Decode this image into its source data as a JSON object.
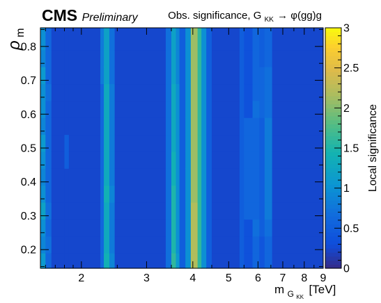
{
  "chart_data": {
    "type": "heatmap",
    "header": {
      "experiment": "CMS",
      "status": "Preliminary",
      "note_prefix": "Obs. significance, G",
      "note_sub": "KK",
      "note_suffix": "→ φ(gg)g"
    },
    "xlabel": {
      "main": "m",
      "sub": "G",
      "subsub": "KK",
      "unit": "[TeV]"
    },
    "ylabel": {
      "main": "ρ",
      "sub": "m"
    },
    "zlabel": "Local significance",
    "x_scale": "log",
    "xlim": [
      1.55,
      9.0
    ],
    "ylim": [
      0.145,
      0.855
    ],
    "zlim": [
      0,
      3
    ],
    "x_ticks": [
      {
        "v": 2,
        "label": "2"
      },
      {
        "v": 3,
        "label": "3"
      },
      {
        "v": 4,
        "label": "4"
      },
      {
        "v": 5,
        "label": "5"
      },
      {
        "v": 6,
        "label": "6"
      },
      {
        "v": 7,
        "label": "7"
      },
      {
        "v": 8,
        "label": "8"
      },
      {
        "v": 9,
        "label": "9"
      }
    ],
    "y_ticks": [
      {
        "v": 0.2,
        "label": "0.2"
      },
      {
        "v": 0.3,
        "label": "0.3"
      },
      {
        "v": 0.4,
        "label": "0.4"
      },
      {
        "v": 0.5,
        "label": "0.5"
      },
      {
        "v": 0.6,
        "label": "0.6"
      },
      {
        "v": 0.7,
        "label": "0.7"
      },
      {
        "v": 0.8,
        "label": "0.8"
      }
    ],
    "z_ticks": [
      {
        "v": 0,
        "label": "0"
      },
      {
        "v": 0.5,
        "label": "0.5"
      },
      {
        "v": 1,
        "label": "1"
      },
      {
        "v": 1.5,
        "label": "1.5"
      },
      {
        "v": 2,
        "label": "2"
      },
      {
        "v": 2.5,
        "label": "2.5"
      },
      {
        "v": 3,
        "label": "3"
      }
    ],
    "y_bins": [
      [
        0.145,
        0.19
      ],
      [
        0.19,
        0.24
      ],
      [
        0.24,
        0.29
      ],
      [
        0.29,
        0.34
      ],
      [
        0.34,
        0.39
      ],
      [
        0.39,
        0.44
      ],
      [
        0.44,
        0.49
      ],
      [
        0.49,
        0.54
      ],
      [
        0.54,
        0.59
      ],
      [
        0.59,
        0.64
      ],
      [
        0.64,
        0.69
      ],
      [
        0.69,
        0.74
      ],
      [
        0.74,
        0.79
      ],
      [
        0.79,
        0.855
      ]
    ],
    "x_bins": [
      [
        1.55,
        1.6
      ],
      [
        1.6,
        1.66
      ],
      [
        1.66,
        1.8
      ],
      [
        1.8,
        1.85
      ],
      [
        1.85,
        2.25
      ],
      [
        2.25,
        2.3
      ],
      [
        2.3,
        2.38
      ],
      [
        2.38,
        2.46
      ],
      [
        2.46,
        3.38
      ],
      [
        3.38,
        3.5
      ],
      [
        3.5,
        3.6
      ],
      [
        3.6,
        3.68
      ],
      [
        3.68,
        3.82
      ],
      [
        3.82,
        3.95
      ],
      [
        3.95,
        4.12
      ],
      [
        4.12,
        4.22
      ],
      [
        4.22,
        4.35
      ],
      [
        4.35,
        4.5
      ],
      [
        4.5,
        5.35
      ],
      [
        5.35,
        5.5
      ],
      [
        5.5,
        5.8
      ],
      [
        5.8,
        6.05
      ],
      [
        6.05,
        6.25
      ],
      [
        6.25,
        6.55
      ],
      [
        6.55,
        9.0
      ]
    ],
    "bin_columns": [
      {
        "bin": [
          1.55,
          1.6
        ],
        "values": [
          1.1,
          0.9,
          1.0,
          1.2,
          1.0,
          0.9,
          1.0,
          1.1,
          0.9,
          1.0,
          1.0,
          1.1,
          0.9,
          1.0
        ]
      },
      {
        "bin": [
          1.6,
          1.66
        ],
        "values": [
          0.6,
          0.7,
          0.6,
          0.7,
          0.6,
          0.6,
          0.6,
          0.6,
          0.6,
          0.6,
          0.7,
          0.6,
          0.6,
          0.6
        ]
      },
      {
        "bin": [
          1.66,
          1.8
        ],
        "values": [
          0.25,
          0.25,
          0.25,
          0.25,
          0.25,
          0.25,
          0.25,
          0.25,
          0.25,
          0.25,
          0.25,
          0.25,
          0.25,
          0.25
        ]
      },
      {
        "bin": [
          1.8,
          1.85
        ],
        "values": [
          0.25,
          0.25,
          0.25,
          0.25,
          0.25,
          0.25,
          0.5,
          0.5,
          0.25,
          0.25,
          0.25,
          0.25,
          0.25,
          0.25
        ]
      },
      {
        "bin": [
          1.85,
          2.25
        ],
        "values": [
          0.25,
          0.25,
          0.25,
          0.25,
          0.25,
          0.25,
          0.25,
          0.25,
          0.25,
          0.25,
          0.25,
          0.25,
          0.25,
          0.25
        ]
      },
      {
        "bin": [
          2.25,
          2.3
        ],
        "values": [
          0.6,
          0.6,
          0.6,
          0.6,
          0.6,
          0.6,
          0.6,
          0.6,
          0.6,
          0.6,
          0.6,
          0.8,
          0.8,
          0.8
        ]
      },
      {
        "bin": [
          2.3,
          2.38
        ],
        "values": [
          1.4,
          1.3,
          1.3,
          1.3,
          1.4,
          1.3,
          1.3,
          1.3,
          1.3,
          1.3,
          1.3,
          1.2,
          1.2,
          1.2
        ]
      },
      {
        "bin": [
          2.38,
          2.46
        ],
        "values": [
          0.9,
          0.8,
          0.8,
          0.8,
          0.9,
          0.8,
          0.8,
          0.8,
          0.8,
          0.8,
          0.8,
          0.7,
          0.7,
          0.7
        ]
      },
      {
        "bin": [
          2.46,
          3.38
        ],
        "values": [
          0.25,
          0.25,
          0.25,
          0.25,
          0.25,
          0.25,
          0.25,
          0.25,
          0.25,
          0.25,
          0.25,
          0.25,
          0.25,
          0.25
        ]
      },
      {
        "bin": [
          3.38,
          3.5
        ],
        "values": [
          0.7,
          0.7,
          0.7,
          0.7,
          0.7,
          0.7,
          0.7,
          0.7,
          0.7,
          0.7,
          0.7,
          0.7,
          0.7,
          0.7
        ]
      },
      {
        "bin": [
          3.5,
          3.6
        ],
        "values": [
          1.6,
          1.5,
          1.5,
          1.5,
          1.5,
          1.4,
          1.4,
          1.3,
          1.3,
          1.3,
          1.3,
          1.2,
          1.2,
          1.2
        ]
      },
      {
        "bin": [
          3.6,
          3.68
        ],
        "values": [
          1.1,
          1.0,
          1.0,
          1.0,
          1.0,
          1.0,
          1.0,
          1.0,
          1.0,
          1.0,
          1.0,
          0.9,
          0.9,
          0.9
        ]
      },
      {
        "bin": [
          3.68,
          3.82
        ],
        "values": [
          0.5,
          0.5,
          0.5,
          0.5,
          0.5,
          0.5,
          0.5,
          0.5,
          0.5,
          0.5,
          0.5,
          0.5,
          0.5,
          0.5
        ]
      },
      {
        "bin": [
          3.82,
          3.95
        ],
        "values": [
          1.0,
          1.0,
          1.0,
          1.0,
          1.0,
          1.0,
          1.0,
          1.0,
          1.0,
          1.0,
          1.0,
          1.0,
          1.0,
          1.0
        ]
      },
      {
        "bin": [
          3.95,
          4.12
        ],
        "values": [
          2.2,
          2.2,
          2.2,
          2.2,
          2.1,
          2.1,
          2.1,
          2.1,
          2.1,
          2.1,
          2.1,
          2.1,
          2.1,
          2.1
        ]
      },
      {
        "bin": [
          4.12,
          4.22
        ],
        "values": [
          1.6,
          1.6,
          1.6,
          1.6,
          1.6,
          1.6,
          1.6,
          1.6,
          1.6,
          1.6,
          1.6,
          1.6,
          1.6,
          1.6
        ]
      },
      {
        "bin": [
          4.22,
          4.35
        ],
        "values": [
          1.0,
          1.0,
          1.0,
          1.0,
          1.0,
          1.0,
          1.0,
          1.0,
          1.0,
          1.0,
          1.0,
          1.0,
          1.0,
          1.0
        ]
      },
      {
        "bin": [
          4.35,
          4.5
        ],
        "values": [
          0.5,
          0.5,
          0.5,
          0.5,
          0.5,
          0.5,
          0.5,
          0.5,
          0.5,
          0.5,
          0.5,
          0.5,
          0.5,
          0.5
        ]
      },
      {
        "bin": [
          4.5,
          5.35
        ],
        "values": [
          0.25,
          0.25,
          0.25,
          0.25,
          0.25,
          0.25,
          0.25,
          0.25,
          0.25,
          0.25,
          0.25,
          0.25,
          0.25,
          0.25
        ]
      },
      {
        "bin": [
          5.35,
          5.5
        ],
        "values": [
          0.5,
          0.5,
          0.5,
          0.5,
          0.5,
          0.5,
          0.5,
          0.5,
          0.5,
          0.5,
          0.5,
          0.5,
          0.5,
          0.5
        ]
      },
      {
        "bin": [
          5.5,
          5.8
        ],
        "values": [
          0.35,
          0.35,
          0.35,
          0.6,
          0.6,
          0.6,
          0.6,
          0.6,
          0.6,
          0.35,
          0.35,
          0.35,
          0.35,
          0.35
        ]
      },
      {
        "bin": [
          5.8,
          6.05
        ],
        "values": [
          0.6,
          0.6,
          0.7,
          0.6,
          0.6,
          0.6,
          0.6,
          0.6,
          0.6,
          0.7,
          0.6,
          0.6,
          0.6,
          0.6
        ]
      },
      {
        "bin": [
          6.05,
          6.25
        ],
        "values": [
          0.4,
          0.4,
          0.5,
          0.5,
          0.5,
          0.5,
          0.5,
          0.5,
          0.5,
          0.6,
          0.6,
          0.6,
          0.5,
          0.5
        ]
      },
      {
        "bin": [
          6.25,
          6.55
        ],
        "values": [
          0.6,
          0.6,
          0.7,
          0.8,
          0.8,
          0.8,
          0.8,
          0.8,
          0.8,
          0.7,
          0.7,
          0.7,
          0.6,
          0.6
        ]
      },
      {
        "bin": [
          6.55,
          9.0
        ],
        "values": [
          0.25,
          0.25,
          0.25,
          0.25,
          0.25,
          0.25,
          0.25,
          0.25,
          0.25,
          0.25,
          0.25,
          0.25,
          0.25,
          0.25
        ]
      }
    ]
  }
}
